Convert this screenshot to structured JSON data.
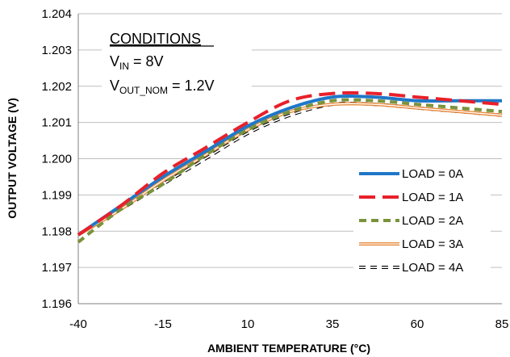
{
  "chart_data": {
    "type": "line",
    "xlabel": "AMBIENT TEMPERATURE (°C)",
    "ylabel": "OUTPUT VOLTAGE (V)",
    "xlim": [
      -40,
      85
    ],
    "ylim": [
      1.196,
      1.204
    ],
    "x_ticks": [
      -40,
      -15,
      10,
      35,
      60,
      85
    ],
    "y_ticks": [
      "1.196",
      "1.197",
      "1.198",
      "1.199",
      "1.200",
      "1.201",
      "1.202",
      "1.203",
      "1.204"
    ],
    "grid": "horizontal",
    "legend_position": "bottom-right",
    "conditions": {
      "heading": "CONDITIONS",
      "vin": {
        "label": "V",
        "sub": "IN",
        "value": " = 8V"
      },
      "vout": {
        "label": "V",
        "sub": "OUT_NOM",
        "value": " = 1.2V"
      }
    },
    "series": [
      {
        "name": "LOAD = 0A",
        "color": "#1f77c8",
        "style": "solid",
        "x": [
          -40,
          -27.5,
          -15,
          -2.5,
          10,
          22.5,
          35,
          47.5,
          60,
          72.5,
          85
        ],
        "y": [
          1.1979,
          1.1987,
          1.1995,
          1.2002,
          1.2009,
          1.2014,
          1.2017,
          1.2017,
          1.2016,
          1.2016,
          1.2016
        ]
      },
      {
        "name": "LOAD = 1A",
        "color": "#e8202a",
        "style": "long-dash",
        "x": [
          -40,
          -27.5,
          -15,
          -2.5,
          10,
          22.5,
          35,
          47.5,
          60,
          72.5,
          85
        ],
        "y": [
          1.1979,
          1.1987,
          1.1996,
          1.2003,
          1.201,
          1.2016,
          1.2018,
          1.2018,
          1.2017,
          1.2016,
          1.2015
        ]
      },
      {
        "name": "LOAD = 2A",
        "color": "#79933b",
        "style": "dash",
        "x": [
          -40,
          -27.5,
          -15,
          -2.5,
          10,
          22.5,
          35,
          47.5,
          60,
          72.5,
          85
        ],
        "y": [
          1.1977,
          1.1986,
          1.1993,
          1.2001,
          1.2008,
          1.2013,
          1.2016,
          1.2016,
          1.2015,
          1.2014,
          1.2013
        ]
      },
      {
        "name": "LOAD = 3A",
        "color": "#e8893a",
        "style": "double",
        "x": [
          -40,
          -27.5,
          -15,
          -2.5,
          10,
          22.5,
          35,
          47.5,
          60,
          72.5,
          85
        ],
        "y": [
          1.1979,
          1.1986,
          1.1994,
          1.2001,
          1.2008,
          1.2013,
          1.2015,
          1.2015,
          1.2014,
          1.2013,
          1.2012
        ]
      },
      {
        "name": "LOAD = 4A",
        "color": "#000000",
        "style": "hollow-dash",
        "x": [
          -40,
          -27.5,
          -15,
          -2.5,
          10,
          22.5,
          35,
          47.5,
          60,
          72.5,
          85
        ],
        "y": [
          1.1979,
          1.1986,
          1.1993,
          1.2,
          1.2007,
          1.2012,
          1.2015,
          1.2015,
          1.2014,
          1.2013,
          1.2012
        ]
      }
    ]
  }
}
